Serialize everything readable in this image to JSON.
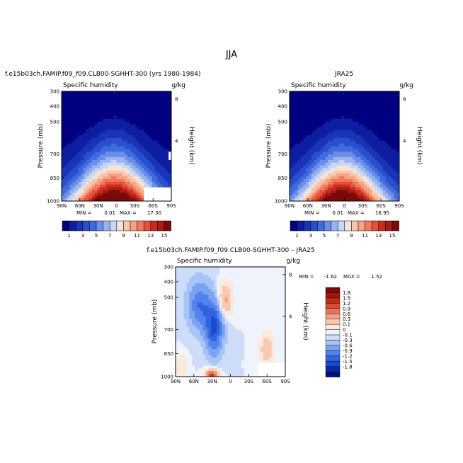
{
  "page": {
    "title": "JJA"
  },
  "colors": {
    "background": "#ffffff",
    "field_palette": [
      "#000080",
      "#0d1ea0",
      "#1a33b8",
      "#2a4fcc",
      "#3f6bde",
      "#6b8fe8",
      "#9ab3f0",
      "#c6d6f6",
      "#f7e2d6",
      "#f7c6ad",
      "#f5a384",
      "#f0785c",
      "#e4503a",
      "#cc2a1f",
      "#a81a12",
      "#7a0a08"
    ],
    "diff_palette": [
      "#001280",
      "#0a2ba8",
      "#1d49cc",
      "#3163e0",
      "#5282ec",
      "#7ca3f2",
      "#a8c3f6",
      "#cddcf8",
      "#eef3fc",
      "#fbe9dd",
      "#f7c9b0",
      "#f2a283",
      "#e87558",
      "#d94b32",
      "#c02a18",
      "#9e160c",
      "#7a0a05"
    ]
  },
  "chart_data": [
    {
      "type": "contour",
      "panel_title": "f.e15b03ch.FAMIP.f09_f09.CLB00-SGHHT-300 (yrs 1980-1984)",
      "variable": "Specific humidity",
      "units": "g/kg",
      "ylabel": "Pressure (mb)",
      "right_label": "Height (km)",
      "x_ticks": [
        "90N",
        "60N",
        "30N",
        "0",
        "30S",
        "60S",
        "90S"
      ],
      "y_ticks": [
        "300",
        "400",
        "500",
        "700",
        "850",
        "1000"
      ],
      "right_ticks": [
        "8",
        "4"
      ],
      "stats": {
        "min_label": "MIN =",
        "min": "0.01",
        "max_label": "MAX =",
        "max": "17.30"
      },
      "colorbar_labels": [
        "1",
        "3",
        "5",
        "7",
        "9",
        "11",
        "13",
        "15"
      ]
    },
    {
      "type": "contour",
      "panel_title": "JRA25",
      "variable": "Specific humidity",
      "units": "g/kg",
      "ylabel": "Pressure (mb)",
      "right_label": "Height (km)",
      "x_ticks": [
        "90N",
        "60N",
        "30N",
        "0",
        "30S",
        "60S",
        "90S"
      ],
      "y_ticks": [
        "300",
        "400",
        "500",
        "700",
        "850",
        "1000"
      ],
      "right_ticks": [
        "8",
        "4"
      ],
      "stats": {
        "min_label": "MIN =",
        "min": "0.01",
        "max_label": "MAX =",
        "max": "16.95"
      },
      "colorbar_labels": [
        "1",
        "3",
        "5",
        "7",
        "9",
        "11",
        "13",
        "15"
      ]
    },
    {
      "type": "contour",
      "panel_title": "f.e15b03ch.FAMIP.f09_f09.CLB00-SGHHT-300 – JRA25",
      "variable": "Specific humidity",
      "units": "g/kg",
      "ylabel": "Pressure (mb)",
      "right_label": "Height (km)",
      "x_ticks": [
        "90N",
        "60N",
        "30N",
        "0",
        "30S",
        "60S",
        "90S"
      ],
      "y_ticks": [
        "300",
        "400",
        "500",
        "700",
        "850",
        "1000"
      ],
      "right_ticks": [
        "8",
        "4"
      ],
      "stats": {
        "min_label": "MIN =",
        "min": "-1.62",
        "max_label": "MAX =",
        "max": "1.52"
      },
      "colorbar_labels": [
        "1.8",
        "1.5",
        "1.2",
        "0.9",
        "0.6",
        "0.3",
        "0.1",
        "0",
        "-0.1",
        "-0.3",
        "-0.6",
        "-0.9",
        "-1.2",
        "-1.5",
        "-1.8"
      ]
    }
  ]
}
